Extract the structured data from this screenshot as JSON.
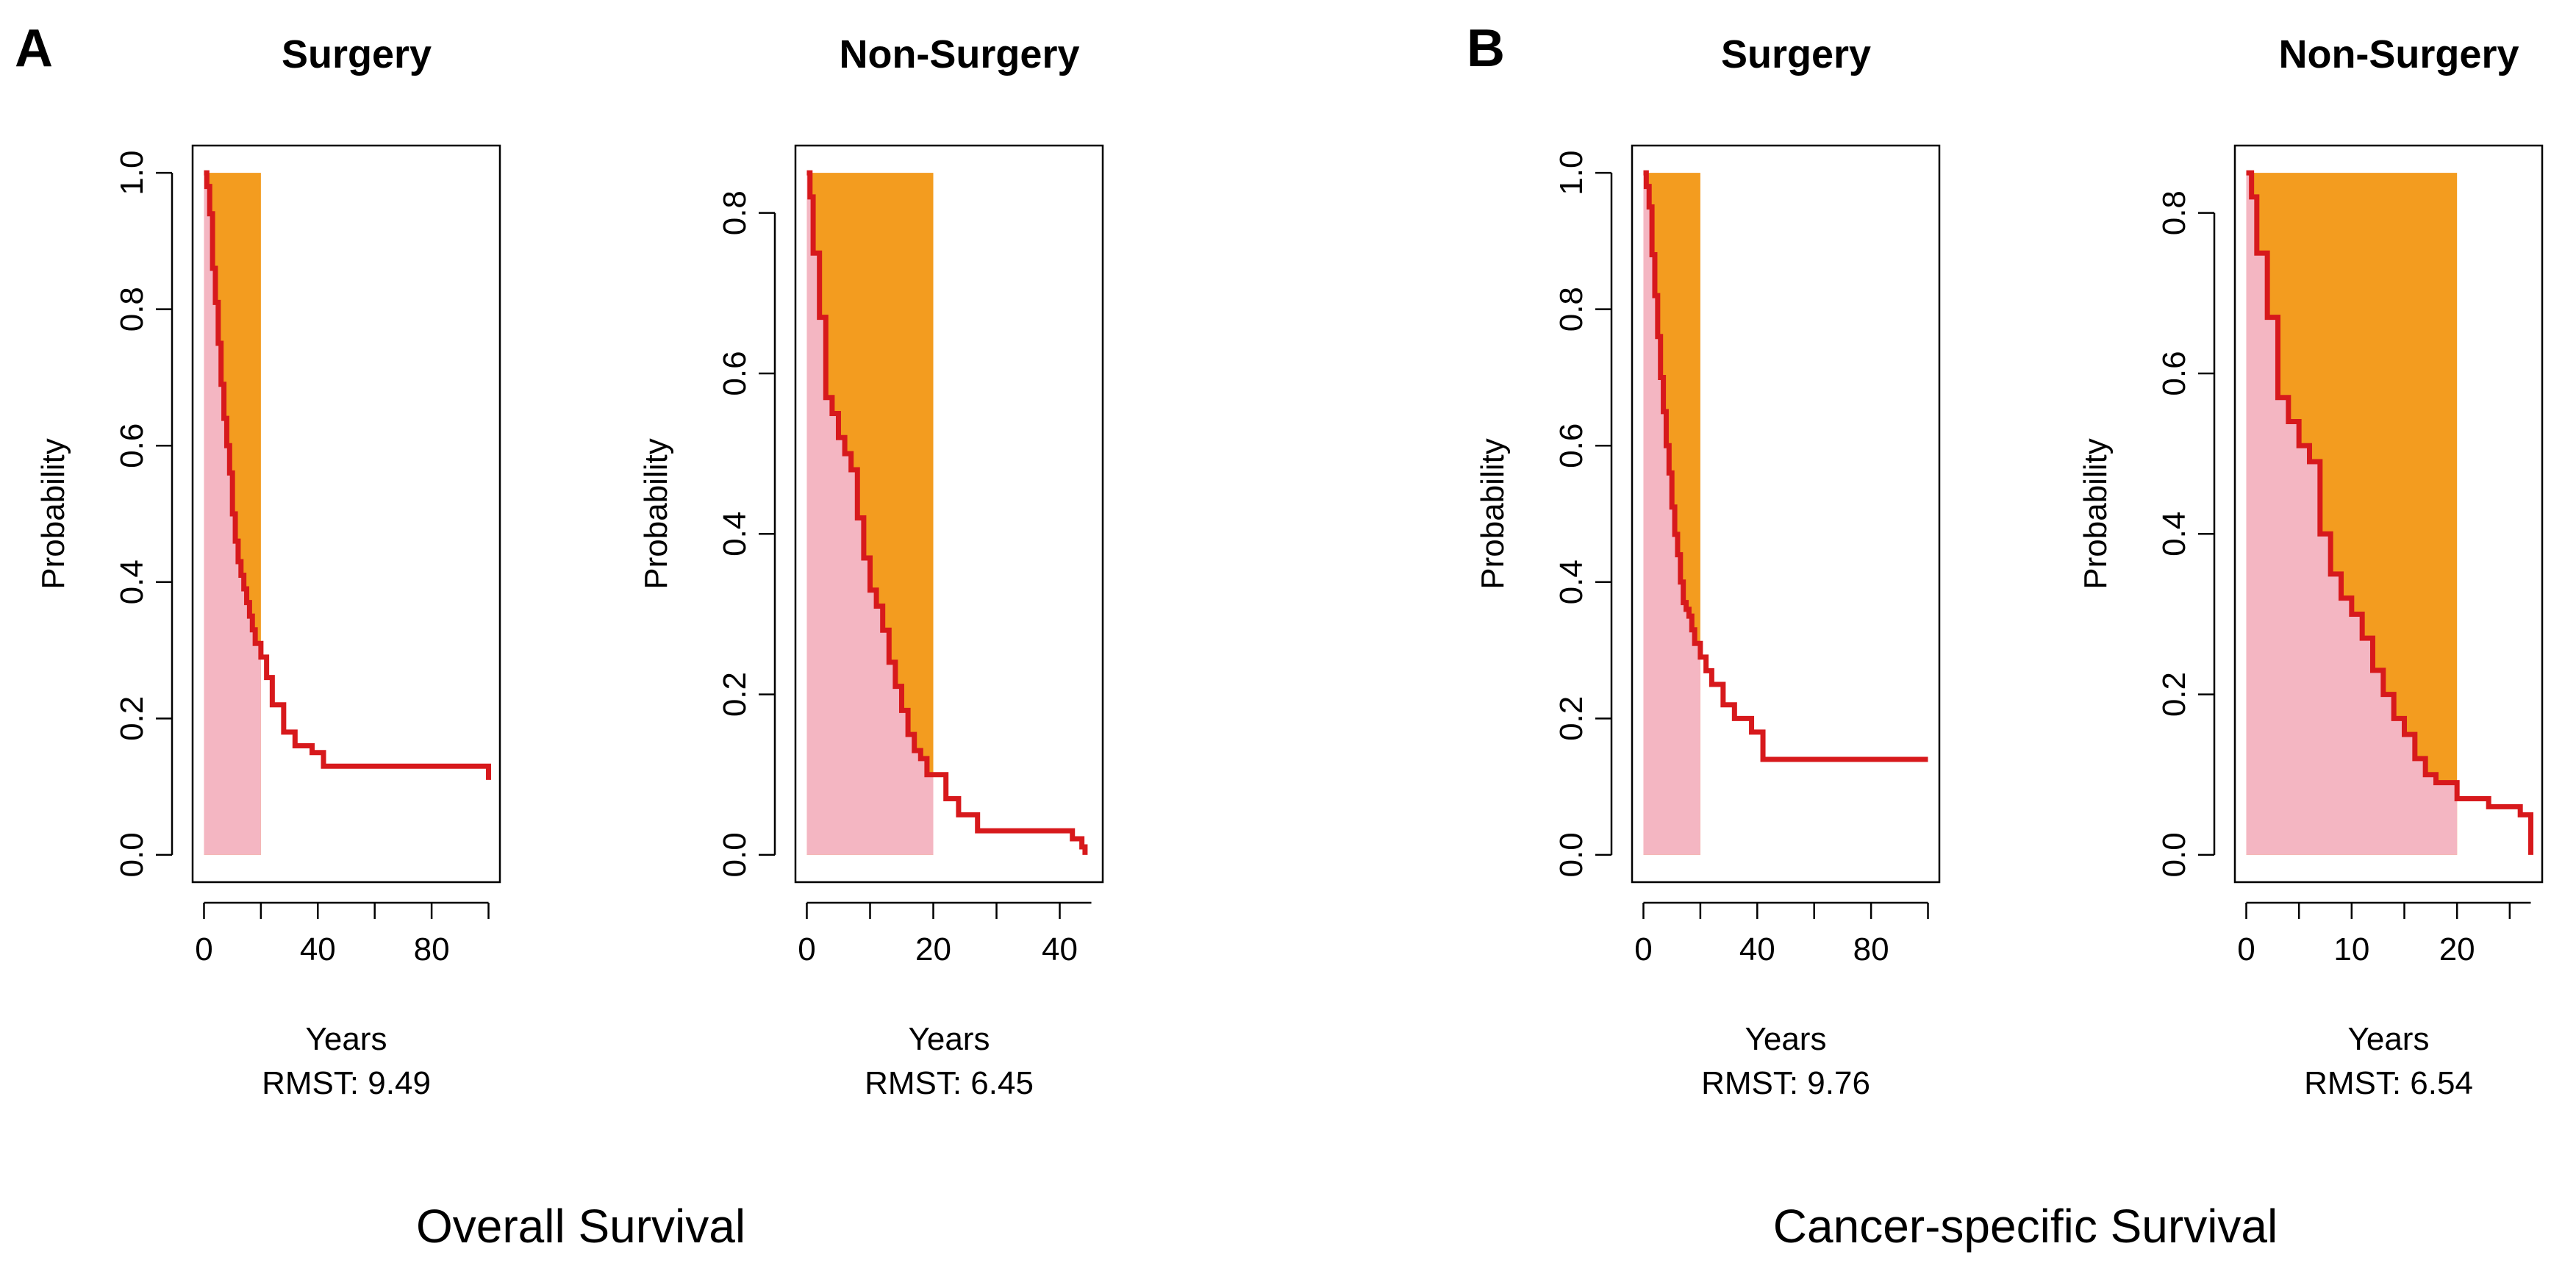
{
  "figure": {
    "panel_a_letter": "A",
    "panel_b_letter": "B",
    "group_a_label": "Overall Survival",
    "group_b_label": "Cancer-specific Survival"
  },
  "colors": {
    "curve": "#d7191c",
    "area_under": "#f4b6c2",
    "area_above": "#f39c1f",
    "axis": "#000000"
  },
  "chart_data": [
    {
      "type": "line",
      "panel": "A",
      "title": "Surgery",
      "xlabel": "Years",
      "ylabel": "Probability",
      "rmst_text": "RMST: 9.49",
      "tau": 20,
      "xlim": [
        0,
        100
      ],
      "ylim": [
        0,
        1.0
      ],
      "xticks": [
        0,
        40,
        80
      ],
      "yticks": [
        0,
        0.2,
        0.4,
        0.6,
        0.8,
        1.0
      ],
      "ytick_labels": [
        "0.0",
        "0.2",
        "0.4",
        "0.6",
        "0.8",
        "1.0"
      ],
      "area_top": 1.0,
      "curve": {
        "x": [
          0,
          1,
          2,
          3,
          4,
          5,
          6,
          7,
          8,
          9,
          10,
          11,
          12,
          13,
          14,
          15,
          16,
          17,
          18,
          20,
          22,
          24,
          28,
          32,
          38,
          42,
          100
        ],
        "y": [
          1.0,
          0.98,
          0.94,
          0.86,
          0.81,
          0.75,
          0.69,
          0.64,
          0.6,
          0.56,
          0.5,
          0.46,
          0.43,
          0.41,
          0.39,
          0.37,
          0.35,
          0.33,
          0.31,
          0.29,
          0.26,
          0.22,
          0.18,
          0.16,
          0.15,
          0.13,
          0.11
        ]
      }
    },
    {
      "type": "line",
      "panel": "A",
      "title": "Non-Surgery",
      "xlabel": "Years",
      "ylabel": "Probability",
      "rmst_text": "RMST: 6.45",
      "tau": 20,
      "xlim": [
        0,
        45
      ],
      "ylim": [
        0,
        0.85
      ],
      "xticks": [
        0,
        20,
        40
      ],
      "yticks": [
        0,
        0.2,
        0.4,
        0.6,
        0.8
      ],
      "ytick_labels": [
        "0.0",
        "0.2",
        "0.4",
        "0.6",
        "0.8"
      ],
      "area_top": 0.85,
      "curve": {
        "x": [
          0,
          0.5,
          1,
          2,
          3,
          4,
          5,
          6,
          7,
          8,
          9,
          10,
          11,
          12,
          13,
          14,
          15,
          16,
          17,
          18,
          19,
          20,
          22,
          24,
          27,
          42,
          43.5,
          44
        ],
        "y": [
          0.85,
          0.82,
          0.75,
          0.67,
          0.57,
          0.55,
          0.52,
          0.5,
          0.48,
          0.42,
          0.37,
          0.33,
          0.31,
          0.28,
          0.24,
          0.21,
          0.18,
          0.15,
          0.13,
          0.12,
          0.1,
          0.1,
          0.07,
          0.05,
          0.03,
          0.02,
          0.01,
          0.0
        ]
      }
    },
    {
      "type": "line",
      "panel": "B",
      "title": "Surgery",
      "xlabel": "Years",
      "ylabel": "Probability",
      "rmst_text": "RMST: 9.76",
      "tau": 20,
      "xlim": [
        0,
        100
      ],
      "ylim": [
        0,
        1.0
      ],
      "xticks": [
        0,
        40,
        80
      ],
      "yticks": [
        0,
        0.2,
        0.4,
        0.6,
        0.8,
        1.0
      ],
      "ytick_labels": [
        "0.0",
        "0.2",
        "0.4",
        "0.6",
        "0.8",
        "1.0"
      ],
      "area_top": 1.0,
      "curve": {
        "x": [
          0,
          1,
          2,
          3,
          4,
          5,
          6,
          7,
          8,
          9,
          10,
          11,
          12,
          13,
          14,
          15,
          16,
          17,
          18,
          20,
          22,
          24,
          28,
          32,
          38,
          42,
          100
        ],
        "y": [
          1.0,
          0.98,
          0.95,
          0.88,
          0.82,
          0.76,
          0.7,
          0.65,
          0.6,
          0.56,
          0.51,
          0.47,
          0.44,
          0.4,
          0.37,
          0.36,
          0.35,
          0.33,
          0.31,
          0.29,
          0.27,
          0.25,
          0.22,
          0.2,
          0.18,
          0.14,
          0.14
        ]
      }
    },
    {
      "type": "line",
      "panel": "B",
      "title": "Non-Surgery",
      "xlabel": "Years",
      "ylabel": "Probability",
      "rmst_text": "RMST: 6.54",
      "tau": 20,
      "xlim": [
        0,
        27
      ],
      "ylim": [
        0,
        0.85
      ],
      "xticks": [
        0,
        10,
        20
      ],
      "yticks": [
        0,
        0.2,
        0.4,
        0.6,
        0.8
      ],
      "ytick_labels": [
        "0.0",
        "0.2",
        "0.4",
        "0.6",
        "0.8"
      ],
      "area_top": 0.85,
      "curve": {
        "x": [
          0,
          0.5,
          1,
          2,
          3,
          4,
          5,
          6,
          7,
          8,
          9,
          10,
          11,
          12,
          13,
          14,
          15,
          16,
          17,
          18,
          20,
          23,
          26,
          27
        ],
        "y": [
          0.85,
          0.82,
          0.75,
          0.67,
          0.57,
          0.54,
          0.51,
          0.49,
          0.4,
          0.35,
          0.32,
          0.3,
          0.27,
          0.23,
          0.2,
          0.17,
          0.15,
          0.12,
          0.1,
          0.09,
          0.07,
          0.06,
          0.05,
          0.0
        ]
      }
    }
  ]
}
